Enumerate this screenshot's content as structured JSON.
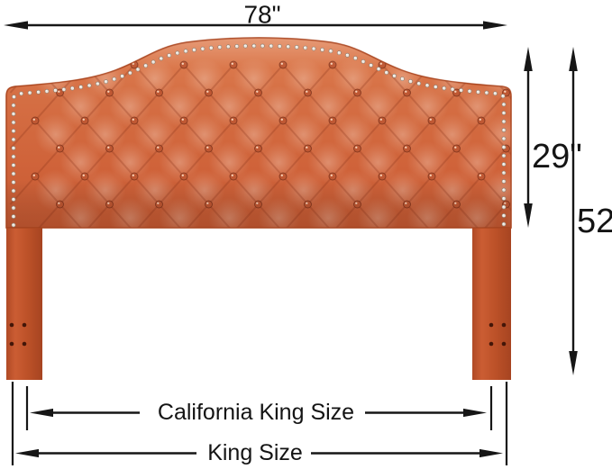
{
  "diagram": {
    "subject": "tufted-headboard-dimension-diagram",
    "dimensions": {
      "width": {
        "label": "78\""
      },
      "panel_height": {
        "label": "29\""
      },
      "total_height": {
        "label": "52\""
      },
      "california_king": {
        "label": "California King Size"
      },
      "king": {
        "label": "King Size"
      }
    },
    "colors": {
      "fabric": "#d2683e",
      "fabric_light": "#e79268",
      "fabric_dark": "#b5512c",
      "fabric_shadow": "#a34621",
      "leg": "#c1522a",
      "button": "#bf5833",
      "nailhead": "#ece5dc",
      "nailhead_edge": "#8a7a6c",
      "bolt_hole": "#431608",
      "dimension_line": "#161616",
      "background": "#ffffff"
    }
  }
}
